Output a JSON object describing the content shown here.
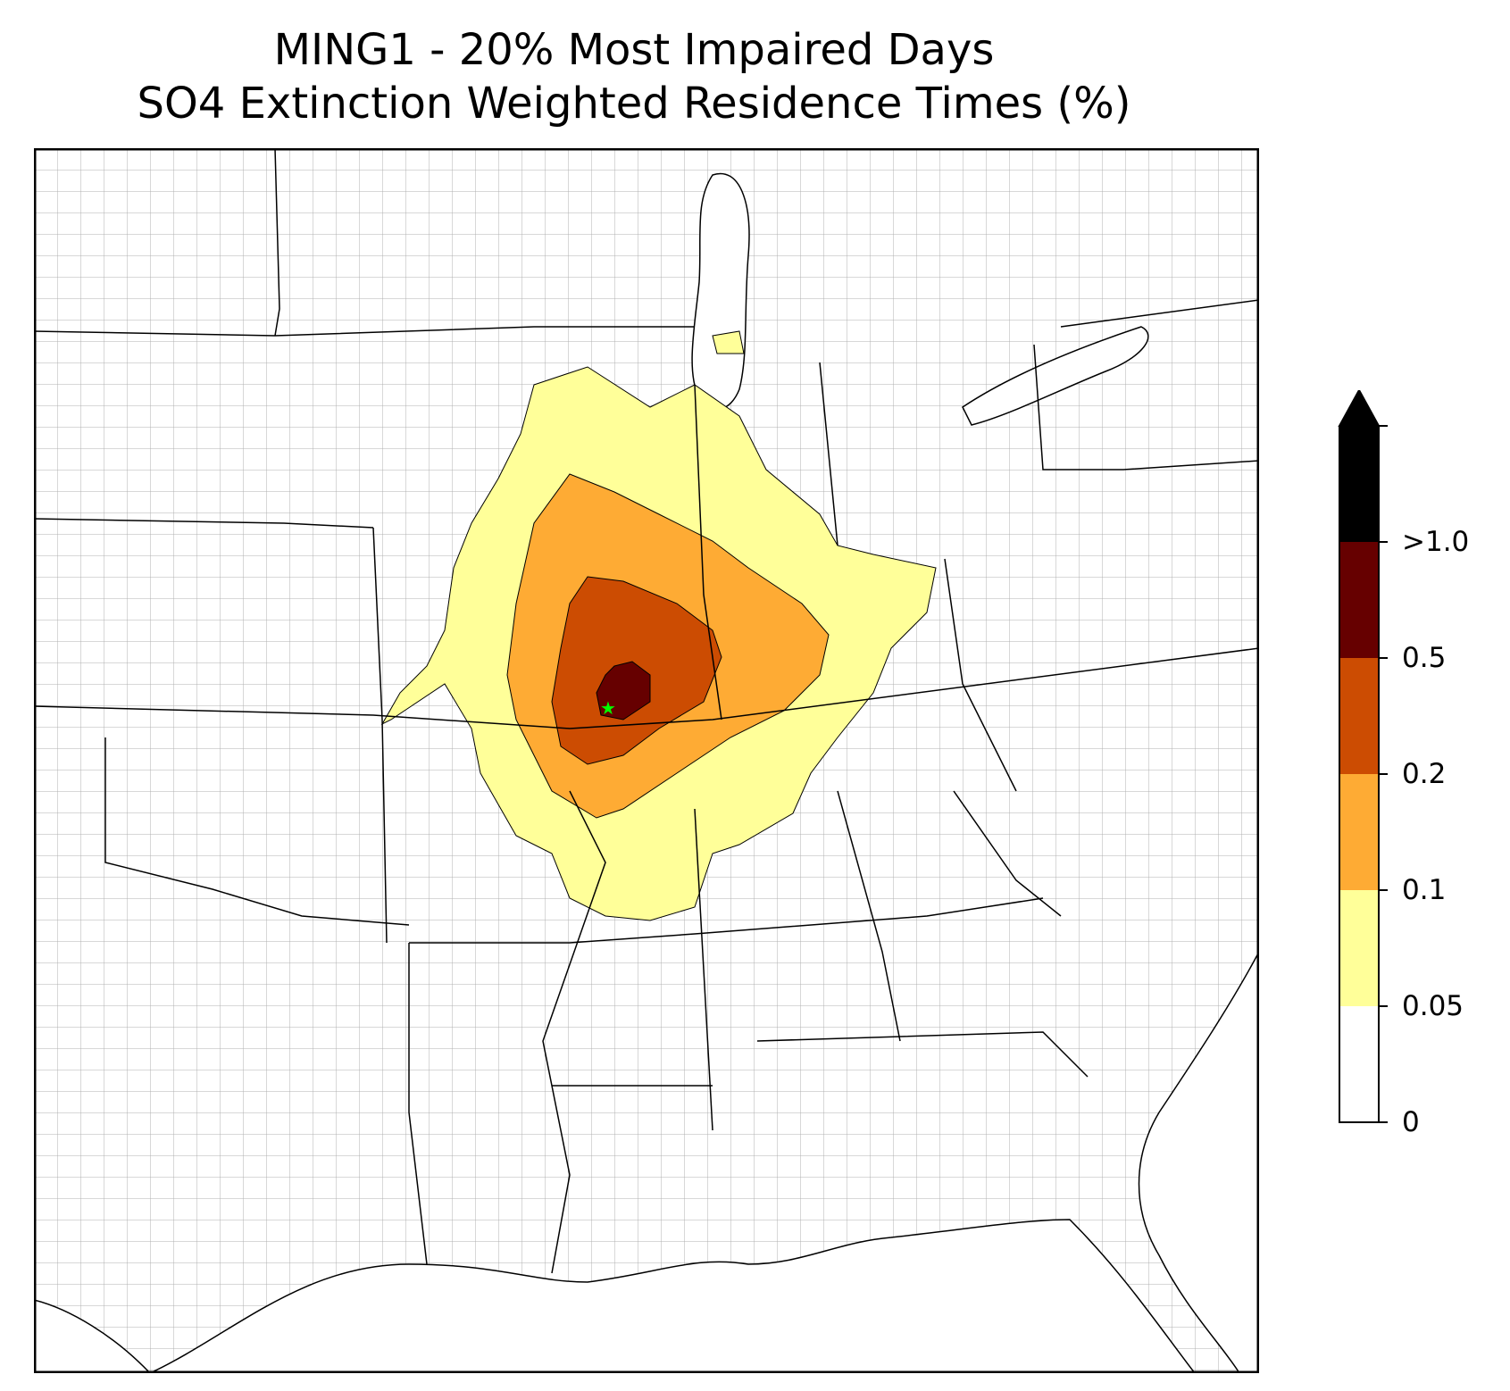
{
  "title": {
    "line1": "MING1 - 20% Most Impaired Days",
    "line2": "SO4 Extinction Weighted Residence Times (%)"
  },
  "colorbar": {
    "levels": [
      {
        "label": "0",
        "color": "#ffffff"
      },
      {
        "label": "0.05",
        "color": "#ffff99"
      },
      {
        "label": "0.1",
        "color": "#feab34"
      },
      {
        "label": "0.2",
        "color": "#cc4c02"
      },
      {
        "label": "0.5",
        "color": "#660000"
      },
      {
        "label": ">1.0",
        "color": "#000000"
      }
    ],
    "extend": "max"
  },
  "map": {
    "region": "central and eastern United States",
    "marker": {
      "name": "MING1",
      "icon": "star-icon",
      "color": "#00ff00"
    },
    "state_line_color": "#000000",
    "county_line_color": "#aaaaaa"
  }
}
